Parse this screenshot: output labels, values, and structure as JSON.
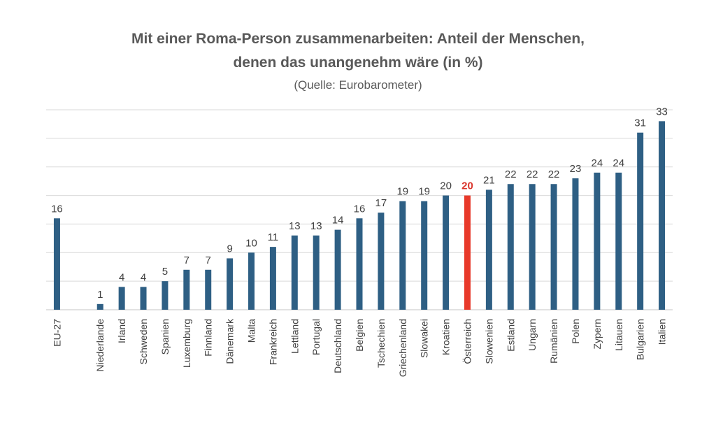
{
  "chart_data": {
    "type": "bar",
    "title_lines": [
      "Mit einer Roma-Person zusammenarbeiten: Anteil der Menschen,",
      "denen das unangenehm wäre (in %)"
    ],
    "subtitle": "(Quelle: Eurobarometer)",
    "categories": [
      "EU-27",
      "",
      "Niederlande",
      "Irland",
      "Schweden",
      "Spanien",
      "Luxemburg",
      "Finnland",
      "Dänemark",
      "Malta",
      "Frankreich",
      "Lettland",
      "Portugal",
      "Deutschland",
      "Belgien",
      "Tschechien",
      "Griechenland",
      "Slowakei",
      "Kroatien",
      "Österreich",
      "Slowenien",
      "Estland",
      "Ungarn",
      "Rumänien",
      "Polen",
      "Zypern",
      "Litauen",
      "Bulgarien",
      "Italien"
    ],
    "values": [
      16,
      null,
      1,
      4,
      4,
      5,
      7,
      7,
      9,
      10,
      11,
      13,
      13,
      14,
      16,
      17,
      19,
      19,
      20,
      20,
      21,
      22,
      22,
      22,
      23,
      24,
      24,
      31,
      33
    ],
    "highlight_category": "Österreich",
    "ylim": [
      0,
      35
    ],
    "gridline_step": 5,
    "grid": true,
    "y_tick_labels_shown": false,
    "colors": {
      "bar": "#2e5f84",
      "highlight_bar": "#e8392a",
      "highlight_label": "#d9342b",
      "gridline": "#d9d9d9",
      "text": "#404040"
    }
  }
}
